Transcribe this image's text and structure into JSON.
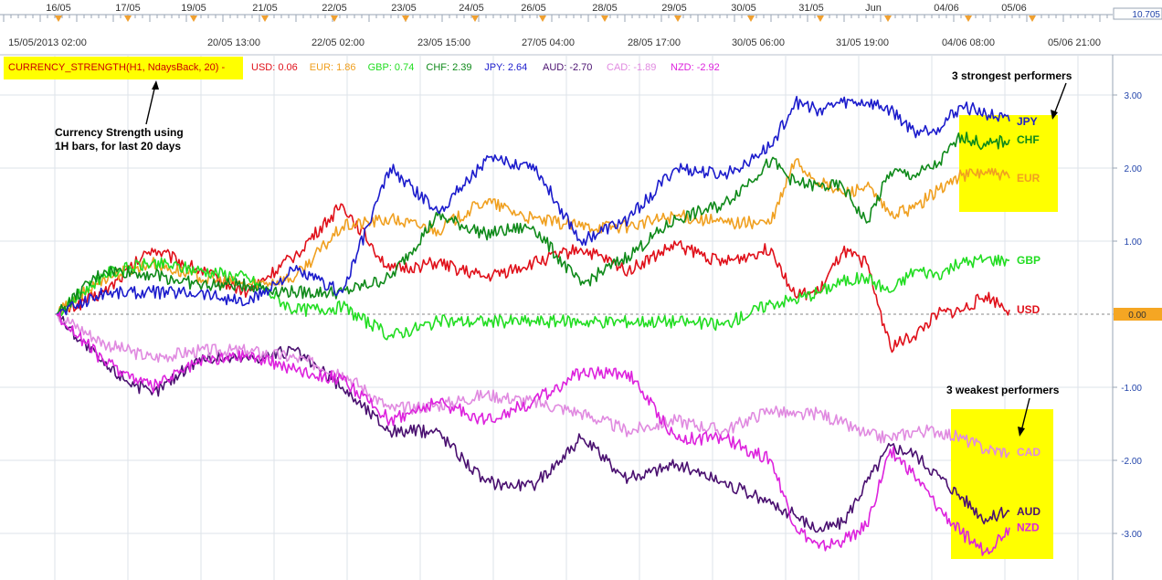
{
  "indicator": {
    "title": "CURRENCY_STRENGTH(H1, NdaysBack, 20) -",
    "readouts": [
      {
        "label": "USD: 0.06",
        "color": "#e0101a"
      },
      {
        "label": "EUR: 1.86",
        "color": "#f0a020"
      },
      {
        "label": "GBP: 0.74",
        "color": "#22dd22"
      },
      {
        "label": "CHF: 2.39",
        "color": "#0f8a1a"
      },
      {
        "label": "JPY: 2.64",
        "color": "#1c1ccc"
      },
      {
        "label": "AUD: -2.70",
        "color": "#4a1070"
      },
      {
        "label": "CAD: -1.89",
        "color": "#e08ae0"
      },
      {
        "label": "NZD: -2.92",
        "color": "#dd22dd"
      }
    ],
    "price_tag": "10.705",
    "current_value_tag": "0.00"
  },
  "annotations": {
    "method": [
      "Currency Strength using",
      "1H bars, for last 20 days"
    ],
    "strongest": "3 strongest performers",
    "weakest": "3 weakest performers"
  },
  "chart_data": {
    "type": "line",
    "title": "",
    "xlabel": "",
    "ylabel": "",
    "ylim": [
      -3.6,
      3.6
    ],
    "grid": true,
    "y_ticks": [
      "3.00",
      "2.00",
      "1.00",
      "0.00",
      "-1.00",
      "-2.00",
      "-3.00"
    ],
    "top_date_labels": [
      "16/05",
      "17/05",
      "19/05",
      "21/05",
      "22/05",
      "23/05",
      "24/05",
      "26/05",
      "28/05",
      "29/05",
      "30/05",
      "31/05",
      "Jun",
      "04/06",
      "05/06"
    ],
    "bottom_date_labels": [
      "15/05/2013 02:00",
      "20/05 13:00",
      "22/05 02:00",
      "23/05 15:00",
      "27/05 04:00",
      "28/05 17:00",
      "30/05 06:00",
      "31/05 19:00",
      "04/06 08:00",
      "05/06 21:00"
    ],
    "x_range": [
      0,
      20
    ],
    "series": [
      {
        "name": "USD",
        "color": "#e0101a",
        "x": [
          0,
          1,
          2,
          3,
          4,
          5,
          6,
          7,
          8,
          9,
          10,
          11,
          12,
          13,
          14,
          15,
          15.5,
          16,
          16.5,
          17,
          17.5,
          18,
          18.5,
          19,
          19.5,
          20
        ],
        "y": [
          0,
          0.3,
          0.9,
          0.6,
          0.3,
          0.8,
          1.5,
          0.6,
          0.7,
          0.5,
          0.7,
          0.9,
          0.6,
          0.95,
          0.7,
          0.9,
          0.25,
          0.3,
          0.85,
          0.7,
          -0.45,
          -0.3,
          0.0,
          0.05,
          0.25,
          0.06
        ]
      },
      {
        "name": "EUR",
        "color": "#f0a020",
        "x": [
          0,
          1,
          2,
          3,
          4,
          5,
          6,
          7,
          8,
          9,
          10,
          11,
          12,
          13,
          14,
          15,
          15.5,
          16,
          16.5,
          17,
          17.5,
          18,
          18.5,
          19,
          19.5,
          20
        ],
        "y": [
          0,
          0.5,
          0.7,
          0.5,
          0.4,
          0.5,
          1.2,
          1.3,
          1.15,
          1.55,
          1.3,
          1.2,
          1.2,
          1.35,
          1.25,
          1.25,
          2.1,
          1.8,
          1.65,
          1.75,
          1.35,
          1.45,
          1.7,
          1.9,
          1.95,
          1.86
        ]
      },
      {
        "name": "GBP",
        "color": "#22dd22",
        "x": [
          0,
          1,
          2,
          3,
          4,
          5,
          6,
          7,
          8,
          9,
          10,
          11,
          12,
          13,
          14,
          15,
          15.5,
          16,
          16.5,
          17,
          17.5,
          18,
          18.5,
          19,
          19.5,
          20
        ],
        "y": [
          0,
          0.55,
          0.7,
          0.6,
          0.5,
          0.05,
          0.1,
          -0.3,
          -0.1,
          -0.1,
          -0.1,
          -0.1,
          -0.1,
          -0.1,
          -0.15,
          0.15,
          0.2,
          0.3,
          0.45,
          0.5,
          0.3,
          0.6,
          0.55,
          0.7,
          0.75,
          0.74
        ]
      },
      {
        "name": "CHF",
        "color": "#0f8a1a",
        "x": [
          0,
          1,
          2,
          3,
          4,
          5,
          6,
          7,
          8,
          9,
          10,
          11,
          12,
          13,
          14,
          15,
          15.5,
          16,
          16.5,
          17,
          17.5,
          18,
          18.5,
          19,
          19.5,
          20
        ],
        "y": [
          0,
          0.6,
          0.55,
          0.4,
          0.4,
          0.3,
          0.3,
          0.5,
          1.35,
          1.1,
          1.2,
          0.4,
          0.8,
          1.3,
          1.5,
          2.1,
          1.8,
          1.75,
          1.75,
          1.25,
          1.95,
          1.9,
          2.05,
          2.45,
          2.3,
          2.39
        ]
      },
      {
        "name": "JPY",
        "color": "#1c1ccc",
        "x": [
          0,
          1,
          2,
          3,
          4,
          5,
          6,
          7,
          8,
          9,
          10,
          11,
          12,
          13,
          14,
          15,
          15.5,
          16,
          16.5,
          17,
          17.5,
          18,
          18.5,
          19,
          19.5,
          20
        ],
        "y": [
          0,
          0.3,
          0.3,
          0.3,
          0.15,
          0.6,
          0.3,
          2.0,
          1.4,
          2.1,
          2.05,
          1.0,
          1.3,
          2.0,
          1.9,
          2.3,
          2.9,
          2.8,
          2.9,
          2.9,
          2.8,
          2.5,
          2.55,
          2.85,
          2.75,
          2.64
        ]
      },
      {
        "name": "AUD",
        "color": "#4a1070",
        "x": [
          0,
          1,
          2,
          3,
          4,
          5,
          6,
          7,
          8,
          9,
          10,
          11,
          12,
          13,
          14,
          15,
          15.5,
          16,
          16.5,
          17,
          17.5,
          18,
          18.5,
          19,
          19.5,
          20
        ],
        "y": [
          0,
          -0.7,
          -1.1,
          -0.6,
          -0.6,
          -0.5,
          -1.0,
          -1.6,
          -1.6,
          -2.3,
          -2.35,
          -1.7,
          -2.25,
          -2.05,
          -2.3,
          -2.6,
          -2.75,
          -2.95,
          -2.85,
          -2.3,
          -1.8,
          -1.9,
          -2.2,
          -2.5,
          -2.8,
          -2.7
        ]
      },
      {
        "name": "CAD",
        "color": "#e08ae0",
        "x": [
          0,
          1,
          2,
          3,
          4,
          5,
          6,
          7,
          8,
          9,
          10,
          11,
          12,
          13,
          14,
          15,
          15.5,
          16,
          16.5,
          17,
          17.5,
          18,
          18.5,
          19,
          19.5,
          20
        ],
        "y": [
          0,
          -0.4,
          -0.6,
          -0.5,
          -0.5,
          -0.6,
          -0.8,
          -1.3,
          -1.25,
          -1.1,
          -1.2,
          -1.35,
          -1.6,
          -1.45,
          -1.6,
          -1.3,
          -1.4,
          -1.35,
          -1.5,
          -1.65,
          -1.7,
          -1.6,
          -1.6,
          -1.7,
          -1.85,
          -1.89
        ]
      },
      {
        "name": "NZD",
        "color": "#dd22dd",
        "x": [
          0,
          1,
          2,
          3,
          4,
          5,
          6,
          7,
          8,
          9,
          10,
          11,
          12,
          13,
          14,
          15,
          15.5,
          16,
          16.5,
          17,
          17.5,
          18,
          18.5,
          19,
          19.5,
          20
        ],
        "y": [
          0,
          -0.65,
          -1.0,
          -0.65,
          -0.55,
          -0.75,
          -0.9,
          -1.45,
          -1.2,
          -1.45,
          -1.2,
          -0.8,
          -0.8,
          -1.7,
          -1.7,
          -2.0,
          -2.9,
          -3.2,
          -3.1,
          -2.9,
          -1.85,
          -2.2,
          -2.65,
          -3.0,
          -3.25,
          -2.92
        ]
      }
    ]
  }
}
